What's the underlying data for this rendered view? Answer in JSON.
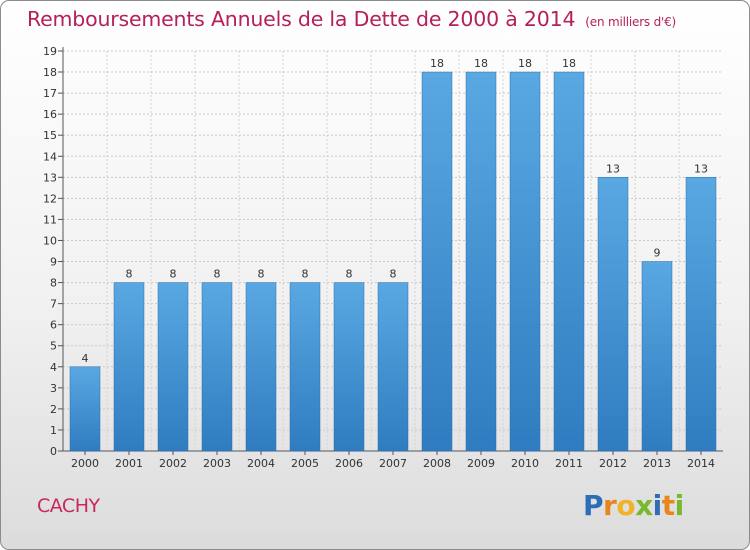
{
  "header": {
    "title": "Remboursements Annuels de la Dette de 2000 à 2014",
    "unit": "(en milliers d'€)"
  },
  "footer": {
    "place": "CACHY",
    "logo": [
      "P",
      "r",
      "o",
      "x",
      "i",
      "t",
      "i"
    ],
    "logo_colors": [
      "#2d6db5",
      "#e8861d",
      "#f2b225",
      "#79b72c",
      "#2d6db5",
      "#e8861d",
      "#79b72c"
    ]
  },
  "chart_data": {
    "type": "bar",
    "title": "Remboursements Annuels de la Dette de 2000 à 2014",
    "categories": [
      "2000",
      "2001",
      "2002",
      "2003",
      "2004",
      "2005",
      "2006",
      "2007",
      "2008",
      "2009",
      "2010",
      "2011",
      "2012",
      "2013",
      "2014"
    ],
    "values": [
      4,
      8,
      8,
      8,
      8,
      8,
      8,
      8,
      18,
      18,
      18,
      18,
      13,
      9,
      13
    ],
    "ylim": [
      0,
      19
    ],
    "yticks": [
      0,
      1,
      2,
      3,
      4,
      5,
      6,
      7,
      8,
      9,
      10,
      11,
      12,
      13,
      14,
      15,
      16,
      17,
      18,
      19
    ],
    "grid": true,
    "bar_color": "#5aa8e2",
    "bar_color_dark": "#2f7cc0"
  }
}
